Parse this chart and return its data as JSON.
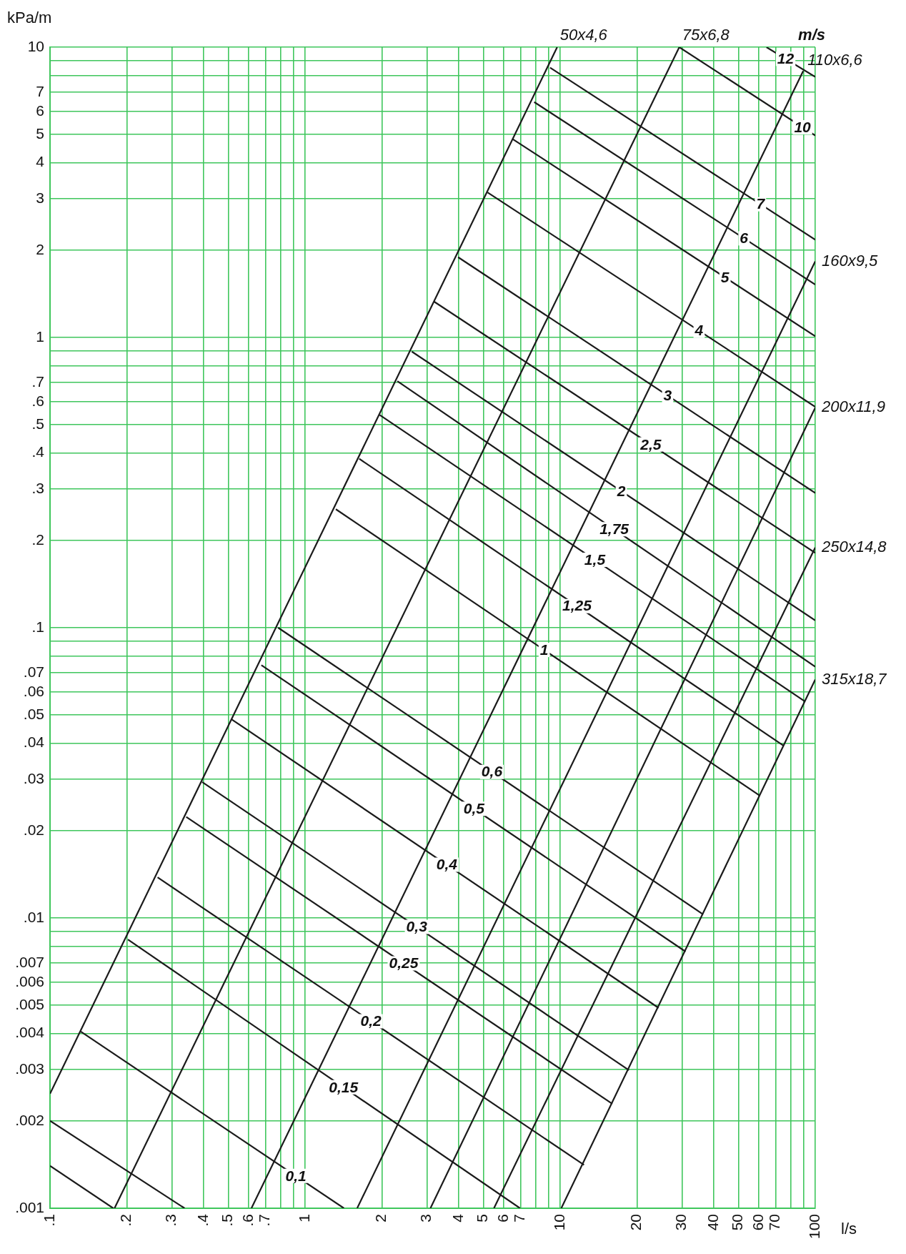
{
  "chart_data": {
    "type": "line",
    "log": "xy",
    "xlabel": "l/s",
    "ylabel": "kPa/m",
    "annotations": [
      "m/s"
    ],
    "xlim": [
      0.1,
      100
    ],
    "ylim": [
      0.001,
      10
    ],
    "xticks": [
      {
        "value": 0.1,
        "label": ".1"
      },
      {
        "value": 0.2,
        "label": ".2"
      },
      {
        "value": 0.3,
        "label": ".3"
      },
      {
        "value": 0.4,
        "label": ".4"
      },
      {
        "value": 0.5,
        "label": ".5"
      },
      {
        "value": 0.6,
        "label": ".6"
      },
      {
        "value": 0.7,
        "label": ".7"
      },
      {
        "value": 0.8,
        "label": null
      },
      {
        "value": 0.9,
        "label": null
      },
      1,
      2,
      3,
      4,
      5,
      6,
      7,
      {
        "value": 8,
        "label": null
      },
      {
        "value": 9,
        "label": null
      },
      10,
      20,
      30,
      40,
      50,
      60,
      70,
      {
        "value": 80,
        "label": null
      },
      {
        "value": 90,
        "label": null
      },
      100
    ],
    "yticks": [
      {
        "value": 0.001,
        "label": ".001"
      },
      {
        "value": 0.002,
        "label": ".002"
      },
      {
        "value": 0.003,
        "label": ".003"
      },
      {
        "value": 0.004,
        "label": ".004"
      },
      {
        "value": 0.005,
        "label": ".005"
      },
      {
        "value": 0.006,
        "label": ".006"
      },
      {
        "value": 0.007,
        "label": ".007"
      },
      {
        "value": 0.008,
        "label": null
      },
      {
        "value": 0.009,
        "label": null
      },
      {
        "value": 0.01,
        "label": ".01"
      },
      {
        "value": 0.02,
        "label": ".02"
      },
      {
        "value": 0.03,
        "label": ".03"
      },
      {
        "value": 0.04,
        "label": ".04"
      },
      {
        "value": 0.05,
        "label": ".05"
      },
      {
        "value": 0.06,
        "label": ".06"
      },
      {
        "value": 0.07,
        "label": ".07"
      },
      {
        "value": 0.08,
        "label": null
      },
      {
        "value": 0.09,
        "label": null
      },
      {
        "value": 0.1,
        "label": ".1"
      },
      {
        "value": 0.2,
        "label": ".2"
      },
      {
        "value": 0.3,
        "label": ".3"
      },
      {
        "value": 0.4,
        "label": ".4"
      },
      {
        "value": 0.5,
        "label": ".5"
      },
      {
        "value": 0.6,
        "label": ".6"
      },
      {
        "value": 0.7,
        "label": ".7"
      },
      {
        "value": 0.8,
        "label": null
      },
      {
        "value": 0.9,
        "label": null
      },
      1,
      2,
      3,
      4,
      5,
      6,
      7,
      {
        "value": 8,
        "label": null
      },
      {
        "value": 9,
        "label": null
      },
      10
    ],
    "grid": true,
    "marker": "none",
    "legend": false,
    "series": [
      {
        "name": "50x4,6",
        "color": "#1a1a1a",
        "x": [
          0.1,
          9.73
        ],
        "values": [
          0.00248,
          10
        ]
      },
      {
        "name": "75x6,8",
        "color": "#1a1a1a",
        "x": [
          0.179,
          29.3
        ],
        "values": [
          0.001,
          10
        ]
      },
      {
        "name": "110x6,6",
        "color": "#1a1a1a",
        "x": [
          0.616,
          89.7
        ],
        "values": [
          0.001,
          8.28
        ]
      },
      {
        "name": "160x9,5",
        "color": "#1a1a1a",
        "x": [
          1.6,
          100
        ],
        "values": [
          0.001,
          1.83
        ]
      },
      {
        "name": "200x11,9",
        "color": "#1a1a1a",
        "x": [
          3.1,
          100
        ],
        "values": [
          0.001,
          0.573
        ]
      },
      {
        "name": "250x14,8",
        "color": "#1a1a1a",
        "x": [
          5.5,
          100
        ],
        "values": [
          0.001,
          0.189
        ]
      },
      {
        "name": "315x18,7",
        "color": "#1a1a1a",
        "x": [
          10.1,
          100
        ],
        "values": [
          0.001,
          0.0663
        ]
      },
      {
        "color": "#1a1a1a",
        "x": [
          0.1,
          0.177
        ],
        "values": [
          0.0014,
          0.001
        ]
      },
      {
        "color": "#1a1a1a",
        "x": [
          0.1,
          0.337
        ],
        "values": [
          0.002,
          0.001
        ]
      },
      {
        "name": "0,1",
        "color": "#1a1a1a",
        "x": [
          0.132,
          1.42
        ],
        "values": [
          0.00406,
          0.001
        ]
      },
      {
        "name": "0,15",
        "color": "#1a1a1a",
        "x": [
          0.202,
          6.96
        ],
        "values": [
          0.00843,
          0.001
        ]
      },
      {
        "name": "0,2",
        "color": "#1a1a1a",
        "x": [
          0.264,
          12.4
        ],
        "values": [
          0.0138,
          0.00141
        ]
      },
      {
        "name": "0,25",
        "color": "#1a1a1a",
        "x": [
          0.342,
          16
        ],
        "values": [
          0.0223,
          0.00229
        ]
      },
      {
        "name": "0,3",
        "color": "#1a1a1a",
        "x": [
          0.395,
          18.6
        ],
        "values": [
          0.0294,
          0.00299
        ]
      },
      {
        "name": "0,4",
        "color": "#1a1a1a",
        "x": [
          0.516,
          24.3
        ],
        "values": [
          0.0483,
          0.0049
        ]
      },
      {
        "name": "0,5",
        "color": "#1a1a1a",
        "x": [
          0.674,
          31
        ],
        "values": [
          0.0743,
          0.00766
        ]
      },
      {
        "name": "0,6",
        "color": "#1a1a1a",
        "x": [
          0.784,
          36.3
        ],
        "values": [
          0.1,
          0.0103
        ]
      },
      {
        "name": "1",
        "color": "#1a1a1a",
        "x": [
          1.32,
          60.6
        ],
        "values": [
          0.256,
          0.0264
        ]
      },
      {
        "name": "1,25",
        "color": "#1a1a1a",
        "x": [
          1.63,
          75.2
        ],
        "values": [
          0.382,
          0.0392
        ]
      },
      {
        "name": "1,5",
        "color": "#1a1a1a",
        "x": [
          1.96,
          90.9
        ],
        "values": [
          0.541,
          0.0558
        ]
      },
      {
        "name": "1,75",
        "color": "#1a1a1a",
        "x": [
          2.3,
          100
        ],
        "values": [
          0.707,
          0.0734
        ]
      },
      {
        "name": "2",
        "color": "#1a1a1a",
        "x": [
          2.62,
          100
        ],
        "values": [
          0.894,
          0.106
        ]
      },
      {
        "name": "2,5",
        "color": "#1a1a1a",
        "x": [
          3.2,
          100
        ],
        "values": [
          1.33,
          0.181
        ]
      },
      {
        "name": "3",
        "color": "#1a1a1a",
        "x": [
          3.98,
          100
        ],
        "values": [
          1.89,
          0.291
        ]
      },
      {
        "name": "4",
        "color": "#1a1a1a",
        "x": [
          5.19,
          100
        ],
        "values": [
          3.16,
          0.577
        ]
      },
      {
        "name": "5",
        "color": "#1a1a1a",
        "x": [
          6.5,
          100
        ],
        "values": [
          4.83,
          1.01
        ]
      },
      {
        "name": "6",
        "color": "#1a1a1a",
        "x": [
          7.91,
          100
        ],
        "values": [
          6.47,
          1.52
        ]
      },
      {
        "name": "7",
        "color": "#1a1a1a",
        "x": [
          9.13,
          100
        ],
        "values": [
          8.5,
          2.17
        ]
      },
      {
        "name": "10",
        "color": "#1a1a1a",
        "x": [
          29.3,
          100
        ],
        "values": [
          10,
          4.96
        ]
      },
      {
        "name": "12",
        "color": "#1a1a1a",
        "x": [
          64.4,
          100
        ],
        "values": [
          10,
          7.9
        ]
      }
    ]
  }
}
